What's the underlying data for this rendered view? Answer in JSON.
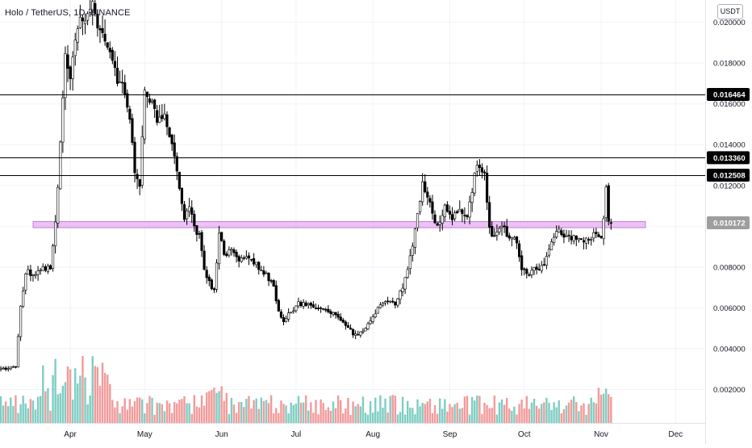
{
  "chart": {
    "symbol": "Holo / TetherUS",
    "interval": "1D",
    "exchange": "BINANCE",
    "currency": "USDT"
  },
  "chart_data": {
    "type": "candlestick",
    "xlabels": [
      "Apr",
      "May",
      "Jun",
      "Jul",
      "Aug",
      "Sep",
      "Oct",
      "Nov",
      "Dec"
    ],
    "ylabels": [
      "0.002000",
      "0.004000",
      "0.006000",
      "0.008000",
      "0.010000",
      "0.012000",
      "0.014000",
      "0.016000",
      "0.018000",
      "0.020000"
    ],
    "ylim": [
      0.0,
      0.0205
    ],
    "grid": true,
    "up_color": "#ffffff",
    "down_color": "#000000",
    "volume_up_color": "#7ecdc2",
    "volume_down_color": "#f29a9a",
    "levels": [
      {
        "value": 0.016464,
        "label": "0.016464"
      },
      {
        "value": 0.01336,
        "label": "0.013360"
      },
      {
        "value": 0.012508,
        "label": "0.012508"
      }
    ],
    "zone": {
      "value": 0.010172,
      "label": "0.010172",
      "low": 0.00993,
      "high": 0.01023,
      "color": "#e9b6f2"
    },
    "keypoints": [
      [
        0,
        0.003
      ],
      [
        6,
        0.0031
      ],
      [
        8,
        0.006
      ],
      [
        10,
        0.0078
      ],
      [
        14,
        0.0076
      ],
      [
        17,
        0.008
      ],
      [
        20,
        0.0079
      ],
      [
        22,
        0.0102
      ],
      [
        24,
        0.014
      ],
      [
        26,
        0.0182
      ],
      [
        28,
        0.0172
      ],
      [
        30,
        0.0191
      ],
      [
        32,
        0.0205
      ],
      [
        34,
        0.0198
      ],
      [
        37,
        0.0208
      ],
      [
        40,
        0.0194
      ],
      [
        44,
        0.0185
      ],
      [
        47,
        0.0172
      ],
      [
        50,
        0.0165
      ],
      [
        52,
        0.015
      ],
      [
        54,
        0.0128
      ],
      [
        56,
        0.012
      ],
      [
        58,
        0.0165
      ],
      [
        60,
        0.0162
      ],
      [
        63,
        0.0152
      ],
      [
        66,
        0.0155
      ],
      [
        69,
        0.014
      ],
      [
        72,
        0.012
      ],
      [
        74,
        0.0102
      ],
      [
        76,
        0.011
      ],
      [
        78,
        0.01
      ],
      [
        80,
        0.0095
      ],
      [
        82,
        0.008
      ],
      [
        84,
        0.0072
      ],
      [
        86,
        0.0068
      ],
      [
        88,
        0.0098
      ],
      [
        90,
        0.0085
      ],
      [
        93,
        0.0088
      ],
      [
        96,
        0.0083
      ],
      [
        100,
        0.0085
      ],
      [
        104,
        0.008
      ],
      [
        107,
        0.0076
      ],
      [
        110,
        0.007
      ],
      [
        112,
        0.0058
      ],
      [
        114,
        0.0054
      ],
      [
        117,
        0.0058
      ],
      [
        120,
        0.0062
      ],
      [
        125,
        0.0061
      ],
      [
        130,
        0.006
      ],
      [
        135,
        0.0056
      ],
      [
        139,
        0.0052
      ],
      [
        142,
        0.0047
      ],
      [
        144,
        0.0046
      ],
      [
        148,
        0.0052
      ],
      [
        152,
        0.006
      ],
      [
        156,
        0.0063
      ],
      [
        159,
        0.0062
      ],
      [
        162,
        0.007
      ],
      [
        164,
        0.008
      ],
      [
        166,
        0.009
      ],
      [
        168,
        0.0105
      ],
      [
        170,
        0.012
      ],
      [
        173,
        0.011
      ],
      [
        176,
        0.01
      ],
      [
        179,
        0.011
      ],
      [
        182,
        0.0103
      ],
      [
        185,
        0.011
      ],
      [
        188,
        0.0103
      ],
      [
        191,
        0.0125
      ],
      [
        193,
        0.0131
      ],
      [
        195,
        0.0125
      ],
      [
        197,
        0.0098
      ],
      [
        199,
        0.0095
      ],
      [
        202,
        0.01
      ],
      [
        205,
        0.0095
      ],
      [
        208,
        0.0092
      ],
      [
        210,
        0.008
      ],
      [
        212,
        0.0077
      ],
      [
        214,
        0.0078
      ],
      [
        216,
        0.0079
      ],
      [
        219,
        0.0082
      ],
      [
        222,
        0.0092
      ],
      [
        225,
        0.0098
      ],
      [
        228,
        0.0094
      ],
      [
        232,
        0.0094
      ],
      [
        236,
        0.0093
      ],
      [
        239,
        0.0096
      ],
      [
        242,
        0.0093
      ],
      [
        244,
        0.0118
      ],
      [
        245,
        0.0104
      ],
      [
        246,
        0.0102
      ]
    ],
    "x_axis_ticks": [
      {
        "label": "Apr",
        "index": 28
      },
      {
        "label": "May",
        "index": 58
      },
      {
        "label": "Jun",
        "index": 89
      },
      {
        "label": "Jul",
        "index": 119
      },
      {
        "label": "Aug",
        "index": 150
      },
      {
        "label": "Sep",
        "index": 181
      },
      {
        "label": "Oct",
        "index": 211
      },
      {
        "label": "Nov",
        "index": 242
      },
      {
        "label": "Dec",
        "index": 272
      }
    ],
    "axis_domain": [
      0,
      282
    ]
  }
}
